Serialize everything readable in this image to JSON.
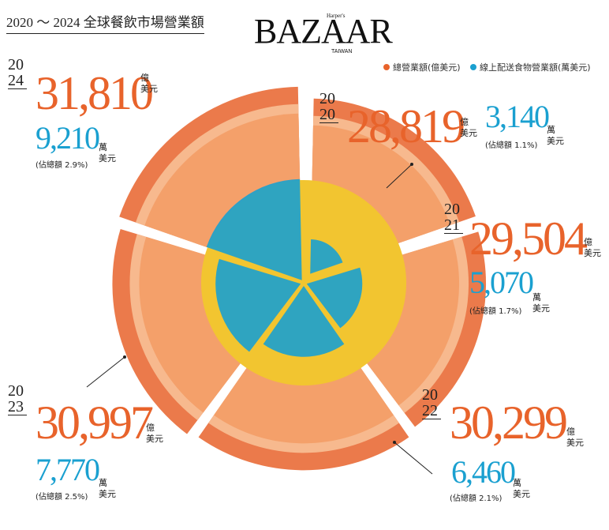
{
  "chart_data": {
    "type": "pie",
    "title": "2020 ～ 2024 全球餐飲市場營業額",
    "brand": "BAZAAR",
    "brand_top": "Harper's",
    "brand_bottom": "TAIWAN",
    "categories": [
      "2020",
      "2021",
      "2022",
      "2023",
      "2024"
    ],
    "series": [
      {
        "name": "總營業額(億美元)",
        "color": "#e8632b",
        "values": [
          28819,
          29504,
          30299,
          30997,
          31810
        ],
        "value_labels": [
          "28,819",
          "29,504",
          "30,299",
          "30,997",
          "31,810"
        ],
        "unit": [
          "億",
          "美元"
        ]
      },
      {
        "name": "線上配送食物營業額(萬美元)",
        "color": "#1aa0d0",
        "values": [
          3140,
          5070,
          6460,
          7770,
          9210
        ],
        "value_labels": [
          "3,140",
          "5,070",
          "6,460",
          "7,770",
          "9,210"
        ],
        "unit": [
          "萬",
          "美元"
        ]
      }
    ],
    "share_labels": [
      "(佔總額 1.1%)",
      "(佔總額 1.7%)",
      "(佔總額 2.1%)",
      "(佔總額 2.5%)",
      "(佔總額 2.9%)"
    ]
  }
}
